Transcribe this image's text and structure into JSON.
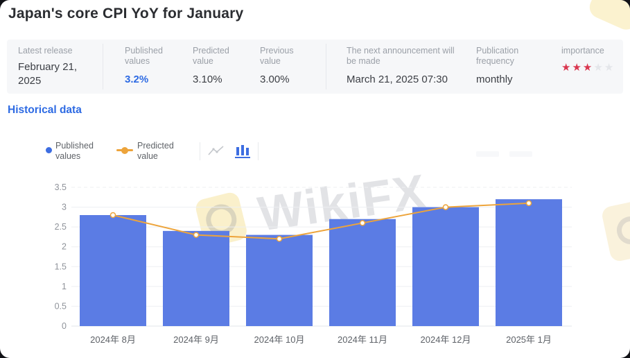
{
  "page": {
    "title": "Japan's core CPI YoY for January"
  },
  "info_bar": {
    "latest_release": {
      "label": "Latest release",
      "value": "February 21, 2025"
    },
    "published_values": {
      "label": "Published values",
      "value": "3.2%"
    },
    "predicted_value": {
      "label": "Predicted value",
      "value": "3.10%"
    },
    "previous_value": {
      "label": "Previous value",
      "value": "3.00%"
    },
    "next_announcement": {
      "label": "The next announcement will be made",
      "value": "March 21, 2025 07:30"
    },
    "publication_frequency": {
      "label": "Publication frequency",
      "value": "monthly"
    },
    "importance": {
      "label": "importance",
      "stars_filled": 3,
      "stars_total": 5
    }
  },
  "sections": {
    "historical_data": "Historical data"
  },
  "legend": {
    "published": "Published values",
    "predicted": "Predicted value",
    "line_chart_icon": "line-chart",
    "bar_chart_icon": "bar-chart",
    "active_chart_type": "bar"
  },
  "chart_data": {
    "type": "bar",
    "categories": [
      "2024年 8月",
      "2024年 9月",
      "2024年 10月",
      "2024年 11月",
      "2024年 12月",
      "2025年 1月"
    ],
    "series": [
      {
        "name": "Published values",
        "type": "bar",
        "values": [
          2.8,
          2.4,
          2.3,
          2.7,
          3.0,
          3.2
        ],
        "color": "#5b7ce4"
      },
      {
        "name": "Predicted value",
        "type": "line",
        "values": [
          2.8,
          2.3,
          2.2,
          2.6,
          3.0,
          3.1
        ],
        "color": "#eda43b"
      }
    ],
    "ylim": [
      0,
      3.5
    ],
    "yticks": [
      0,
      0.5,
      1,
      1.5,
      2,
      2.5,
      3,
      3.5
    ],
    "grid": true,
    "legend_position": "top",
    "title": "",
    "xlabel": "",
    "ylabel": ""
  },
  "watermark": {
    "text": "WikiFX"
  },
  "colors": {
    "accent_blue": "#2d6ae3",
    "bar_blue": "#5b7ce4",
    "line_orange": "#eda43b",
    "star_filled": "#d9364f",
    "star_empty": "#e4e6ea"
  }
}
